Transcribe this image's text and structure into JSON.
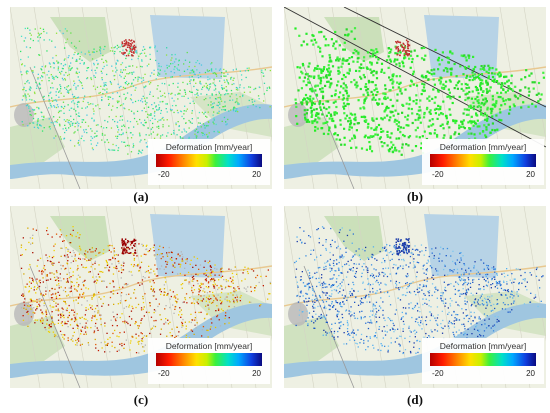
{
  "legend": {
    "title": "Deformation [mm/year]",
    "min_label": "-20",
    "max_label": "20"
  },
  "panels": [
    {
      "id": "a",
      "caption": "(a)",
      "point_colors": [
        "#2ee56a",
        "#37d6a8",
        "#4be2c7",
        "#62e04b",
        "#4cc7e0",
        "#8ee23b"
      ],
      "accent_color": "#c03030"
    },
    {
      "id": "b",
      "caption": "(b)",
      "point_colors": [
        "#22ee22",
        "#33f033",
        "#2bd82b",
        "#44f044",
        "#28e830"
      ],
      "accent_color": "#c03030"
    },
    {
      "id": "c",
      "caption": "(c)",
      "point_colors": [
        "#d6a800",
        "#e8c300",
        "#c21a00",
        "#e05500",
        "#b5b5b5",
        "#f0d000",
        "#aa1100"
      ],
      "accent_color": "#9a0000"
    },
    {
      "id": "d",
      "caption": "(d)",
      "point_colors": [
        "#1a58c8",
        "#3a8de0",
        "#55b0f0",
        "#1a3aa8",
        "#7cc6ee",
        "#2a70d8"
      ],
      "accent_color": "#1a3aa8"
    }
  ],
  "map": {
    "lake_color": "#b7d3e6",
    "river_color": "#9fc6e0",
    "land_color": "#eef0e3",
    "park_color": "#bcd8a8"
  }
}
